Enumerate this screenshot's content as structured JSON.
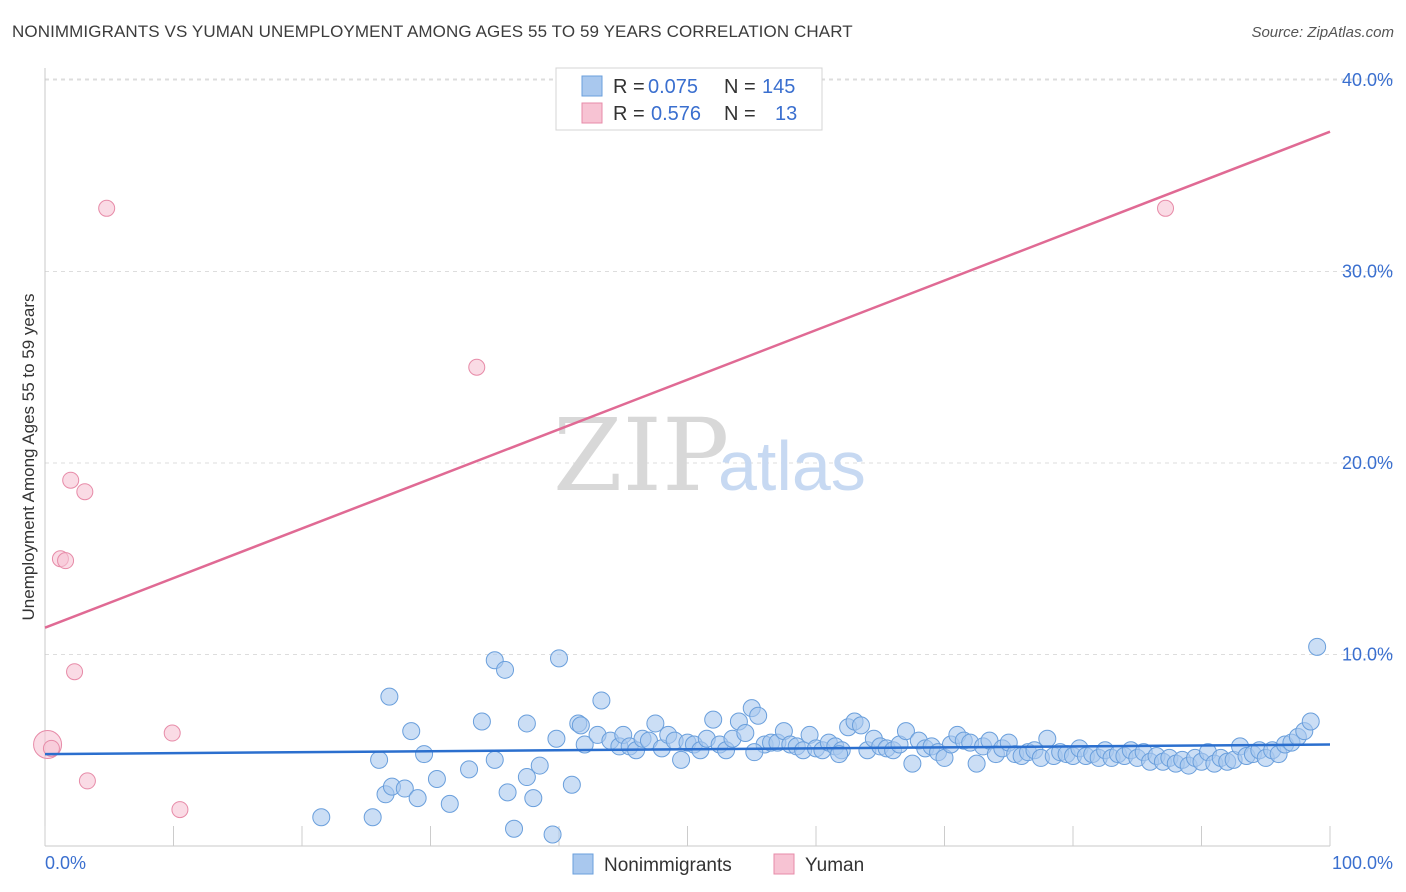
{
  "title": "NONIMMIGRANTS VS YUMAN UNEMPLOYMENT AMONG AGES 55 TO 59 YEARS CORRELATION CHART",
  "source": "Source: ZipAtlas.com",
  "watermark": {
    "zip": "ZIP",
    "atlas": "atlas"
  },
  "colors": {
    "blue_fill": "#a9c8ee",
    "blue_stroke": "#6a9fdc",
    "blue_line": "#2b6fce",
    "pink_fill": "#f7c3d3",
    "pink_stroke": "#e78ba8",
    "pink_line": "#e06a94",
    "tick_text": "#3a6fcf",
    "grid": "#dddddd"
  },
  "legend": {
    "rows": [
      {
        "r_label": "R =",
        "r_value": "0.075",
        "n_label": "N =",
        "n_value": "145"
      },
      {
        "r_label": "R =",
        "r_value": "0.576",
        "n_label": "N =",
        "n_value": "13"
      }
    ]
  },
  "chart_data": {
    "type": "scatter",
    "title": "NONIMMIGRANTS VS YUMAN UNEMPLOYMENT AMONG AGES 55 TO 59 YEARS CORRELATION CHART",
    "xlabel": "",
    "ylabel": "Unemployment Among Ages 55 to 59 years",
    "xlim": [
      0,
      100
    ],
    "ylim": [
      0,
      40
    ],
    "x_tick_labels": [
      "0.0%",
      "100.0%"
    ],
    "y_ticks": [
      10,
      20,
      30,
      40
    ],
    "y_tick_labels": [
      "10.0%",
      "20.0%",
      "30.0%",
      "40.0%"
    ],
    "grid": true,
    "legend_position": "top-center",
    "series": [
      {
        "name": "Nonimmigrants",
        "R": 0.075,
        "N": 145,
        "trend": {
          "x": [
            0,
            100
          ],
          "y": [
            4.8,
            5.3
          ]
        },
        "points": [
          [
            21.5,
            1.5
          ],
          [
            25.5,
            1.5
          ],
          [
            26,
            4.5
          ],
          [
            26.5,
            2.7
          ],
          [
            26.8,
            7.8
          ],
          [
            27,
            3.1
          ],
          [
            28,
            3.0
          ],
          [
            29,
            2.5
          ],
          [
            28.5,
            6.0
          ],
          [
            29.5,
            4.8
          ],
          [
            30.5,
            3.5
          ],
          [
            31.5,
            2.2
          ],
          [
            33,
            4.0
          ],
          [
            34,
            6.5
          ],
          [
            35,
            4.5
          ],
          [
            35,
            9.7
          ],
          [
            35.8,
            9.2
          ],
          [
            36,
            2.8
          ],
          [
            36.5,
            0.9
          ],
          [
            37.5,
            3.6
          ],
          [
            37.5,
            6.4
          ],
          [
            38,
            2.5
          ],
          [
            38.5,
            4.2
          ],
          [
            39.5,
            0.6
          ],
          [
            39.8,
            5.6
          ],
          [
            40,
            9.8
          ],
          [
            41,
            3.2
          ],
          [
            41.5,
            6.4
          ],
          [
            41.7,
            6.3
          ],
          [
            42,
            5.3
          ],
          [
            43,
            5.8
          ],
          [
            43.3,
            7.6
          ],
          [
            44,
            5.5
          ],
          [
            44.7,
            5.2
          ],
          [
            45,
            5.8
          ],
          [
            45.5,
            5.2
          ],
          [
            46,
            5.0
          ],
          [
            46.5,
            5.6
          ],
          [
            47,
            5.5
          ],
          [
            47.5,
            6.4
          ],
          [
            48,
            5.1
          ],
          [
            48.5,
            5.8
          ],
          [
            49,
            5.5
          ],
          [
            49.5,
            4.5
          ],
          [
            50,
            5.4
          ],
          [
            50.5,
            5.3
          ],
          [
            51,
            5.0
          ],
          [
            51.5,
            5.6
          ],
          [
            52,
            6.6
          ],
          [
            52.5,
            5.3
          ],
          [
            53,
            5.0
          ],
          [
            53.5,
            5.6
          ],
          [
            54,
            6.5
          ],
          [
            54.5,
            5.9
          ],
          [
            55,
            7.2
          ],
          [
            55.5,
            6.8
          ],
          [
            56,
            5.3
          ],
          [
            56.5,
            5.4
          ],
          [
            57,
            5.4
          ],
          [
            57.5,
            6.0
          ],
          [
            58,
            5.3
          ],
          [
            58.5,
            5.2
          ],
          [
            59,
            5.0
          ],
          [
            59.5,
            5.8
          ],
          [
            60,
            5.1
          ],
          [
            60.5,
            5.0
          ],
          [
            61,
            5.4
          ],
          [
            61.5,
            5.2
          ],
          [
            62,
            5.0
          ],
          [
            62.5,
            6.2
          ],
          [
            63,
            6.5
          ],
          [
            63.5,
            6.3
          ],
          [
            64,
            5.0
          ],
          [
            64.5,
            5.6
          ],
          [
            65,
            5.2
          ],
          [
            65.5,
            5.1
          ],
          [
            66,
            5.0
          ],
          [
            66.5,
            5.3
          ],
          [
            67,
            6.0
          ],
          [
            67.5,
            4.3
          ],
          [
            68,
            5.5
          ],
          [
            68.5,
            5.1
          ],
          [
            69,
            5.2
          ],
          [
            69.5,
            4.9
          ],
          [
            70,
            4.6
          ],
          [
            70.5,
            5.3
          ],
          [
            71,
            5.8
          ],
          [
            71.5,
            5.5
          ],
          [
            72,
            5.4
          ],
          [
            72.5,
            4.3
          ],
          [
            73,
            5.2
          ],
          [
            73.5,
            5.5
          ],
          [
            74,
            4.8
          ],
          [
            74.5,
            5.1
          ],
          [
            75,
            5.4
          ],
          [
            75.5,
            4.8
          ],
          [
            76,
            4.7
          ],
          [
            76.5,
            4.9
          ],
          [
            77,
            5.0
          ],
          [
            77.5,
            4.6
          ],
          [
            78,
            5.6
          ],
          [
            78.5,
            4.7
          ],
          [
            79,
            4.9
          ],
          [
            79.5,
            4.8
          ],
          [
            80,
            4.7
          ],
          [
            80.5,
            5.1
          ],
          [
            81,
            4.7
          ],
          [
            81.5,
            4.8
          ],
          [
            82,
            4.6
          ],
          [
            82.5,
            5.0
          ],
          [
            83,
            4.6
          ],
          [
            83.5,
            4.8
          ],
          [
            84,
            4.7
          ],
          [
            84.5,
            5.0
          ],
          [
            85,
            4.6
          ],
          [
            85.5,
            4.9
          ],
          [
            86,
            4.4
          ],
          [
            86.5,
            4.7
          ],
          [
            87,
            4.4
          ],
          [
            87.5,
            4.6
          ],
          [
            88,
            4.3
          ],
          [
            88.5,
            4.5
          ],
          [
            89,
            4.2
          ],
          [
            89.5,
            4.6
          ],
          [
            90,
            4.4
          ],
          [
            90.5,
            4.9
          ],
          [
            91,
            4.3
          ],
          [
            91.5,
            4.6
          ],
          [
            92,
            4.4
          ],
          [
            92.5,
            4.5
          ],
          [
            93,
            5.2
          ],
          [
            93.5,
            4.7
          ],
          [
            94,
            4.8
          ],
          [
            94.5,
            5.0
          ],
          [
            95,
            4.6
          ],
          [
            95.5,
            5.0
          ],
          [
            96,
            4.8
          ],
          [
            96.5,
            5.3
          ],
          [
            97,
            5.4
          ],
          [
            97.5,
            5.7
          ],
          [
            98,
            6.0
          ],
          [
            98.5,
            6.5
          ],
          [
            99,
            10.4
          ],
          [
            55.2,
            4.9
          ],
          [
            61.8,
            4.8
          ]
        ]
      },
      {
        "name": "Yuman",
        "R": 0.576,
        "N": 13,
        "trend": {
          "x": [
            0,
            100
          ],
          "y": [
            11.4,
            37.3
          ]
        },
        "points": [
          [
            0.2,
            5.3
          ],
          [
            0.5,
            5.1
          ],
          [
            1.2,
            15.0
          ],
          [
            1.6,
            14.9
          ],
          [
            2.0,
            19.1
          ],
          [
            2.3,
            9.1
          ],
          [
            3.1,
            18.5
          ],
          [
            3.3,
            3.4
          ],
          [
            4.8,
            33.3
          ],
          [
            9.9,
            5.9
          ],
          [
            10.5,
            1.9
          ],
          [
            33.6,
            25.0
          ],
          [
            87.2,
            33.3
          ]
        ]
      }
    ]
  },
  "bottom_legend": {
    "items": [
      {
        "label": "Nonimmigrants"
      },
      {
        "label": "Yuman"
      }
    ]
  }
}
